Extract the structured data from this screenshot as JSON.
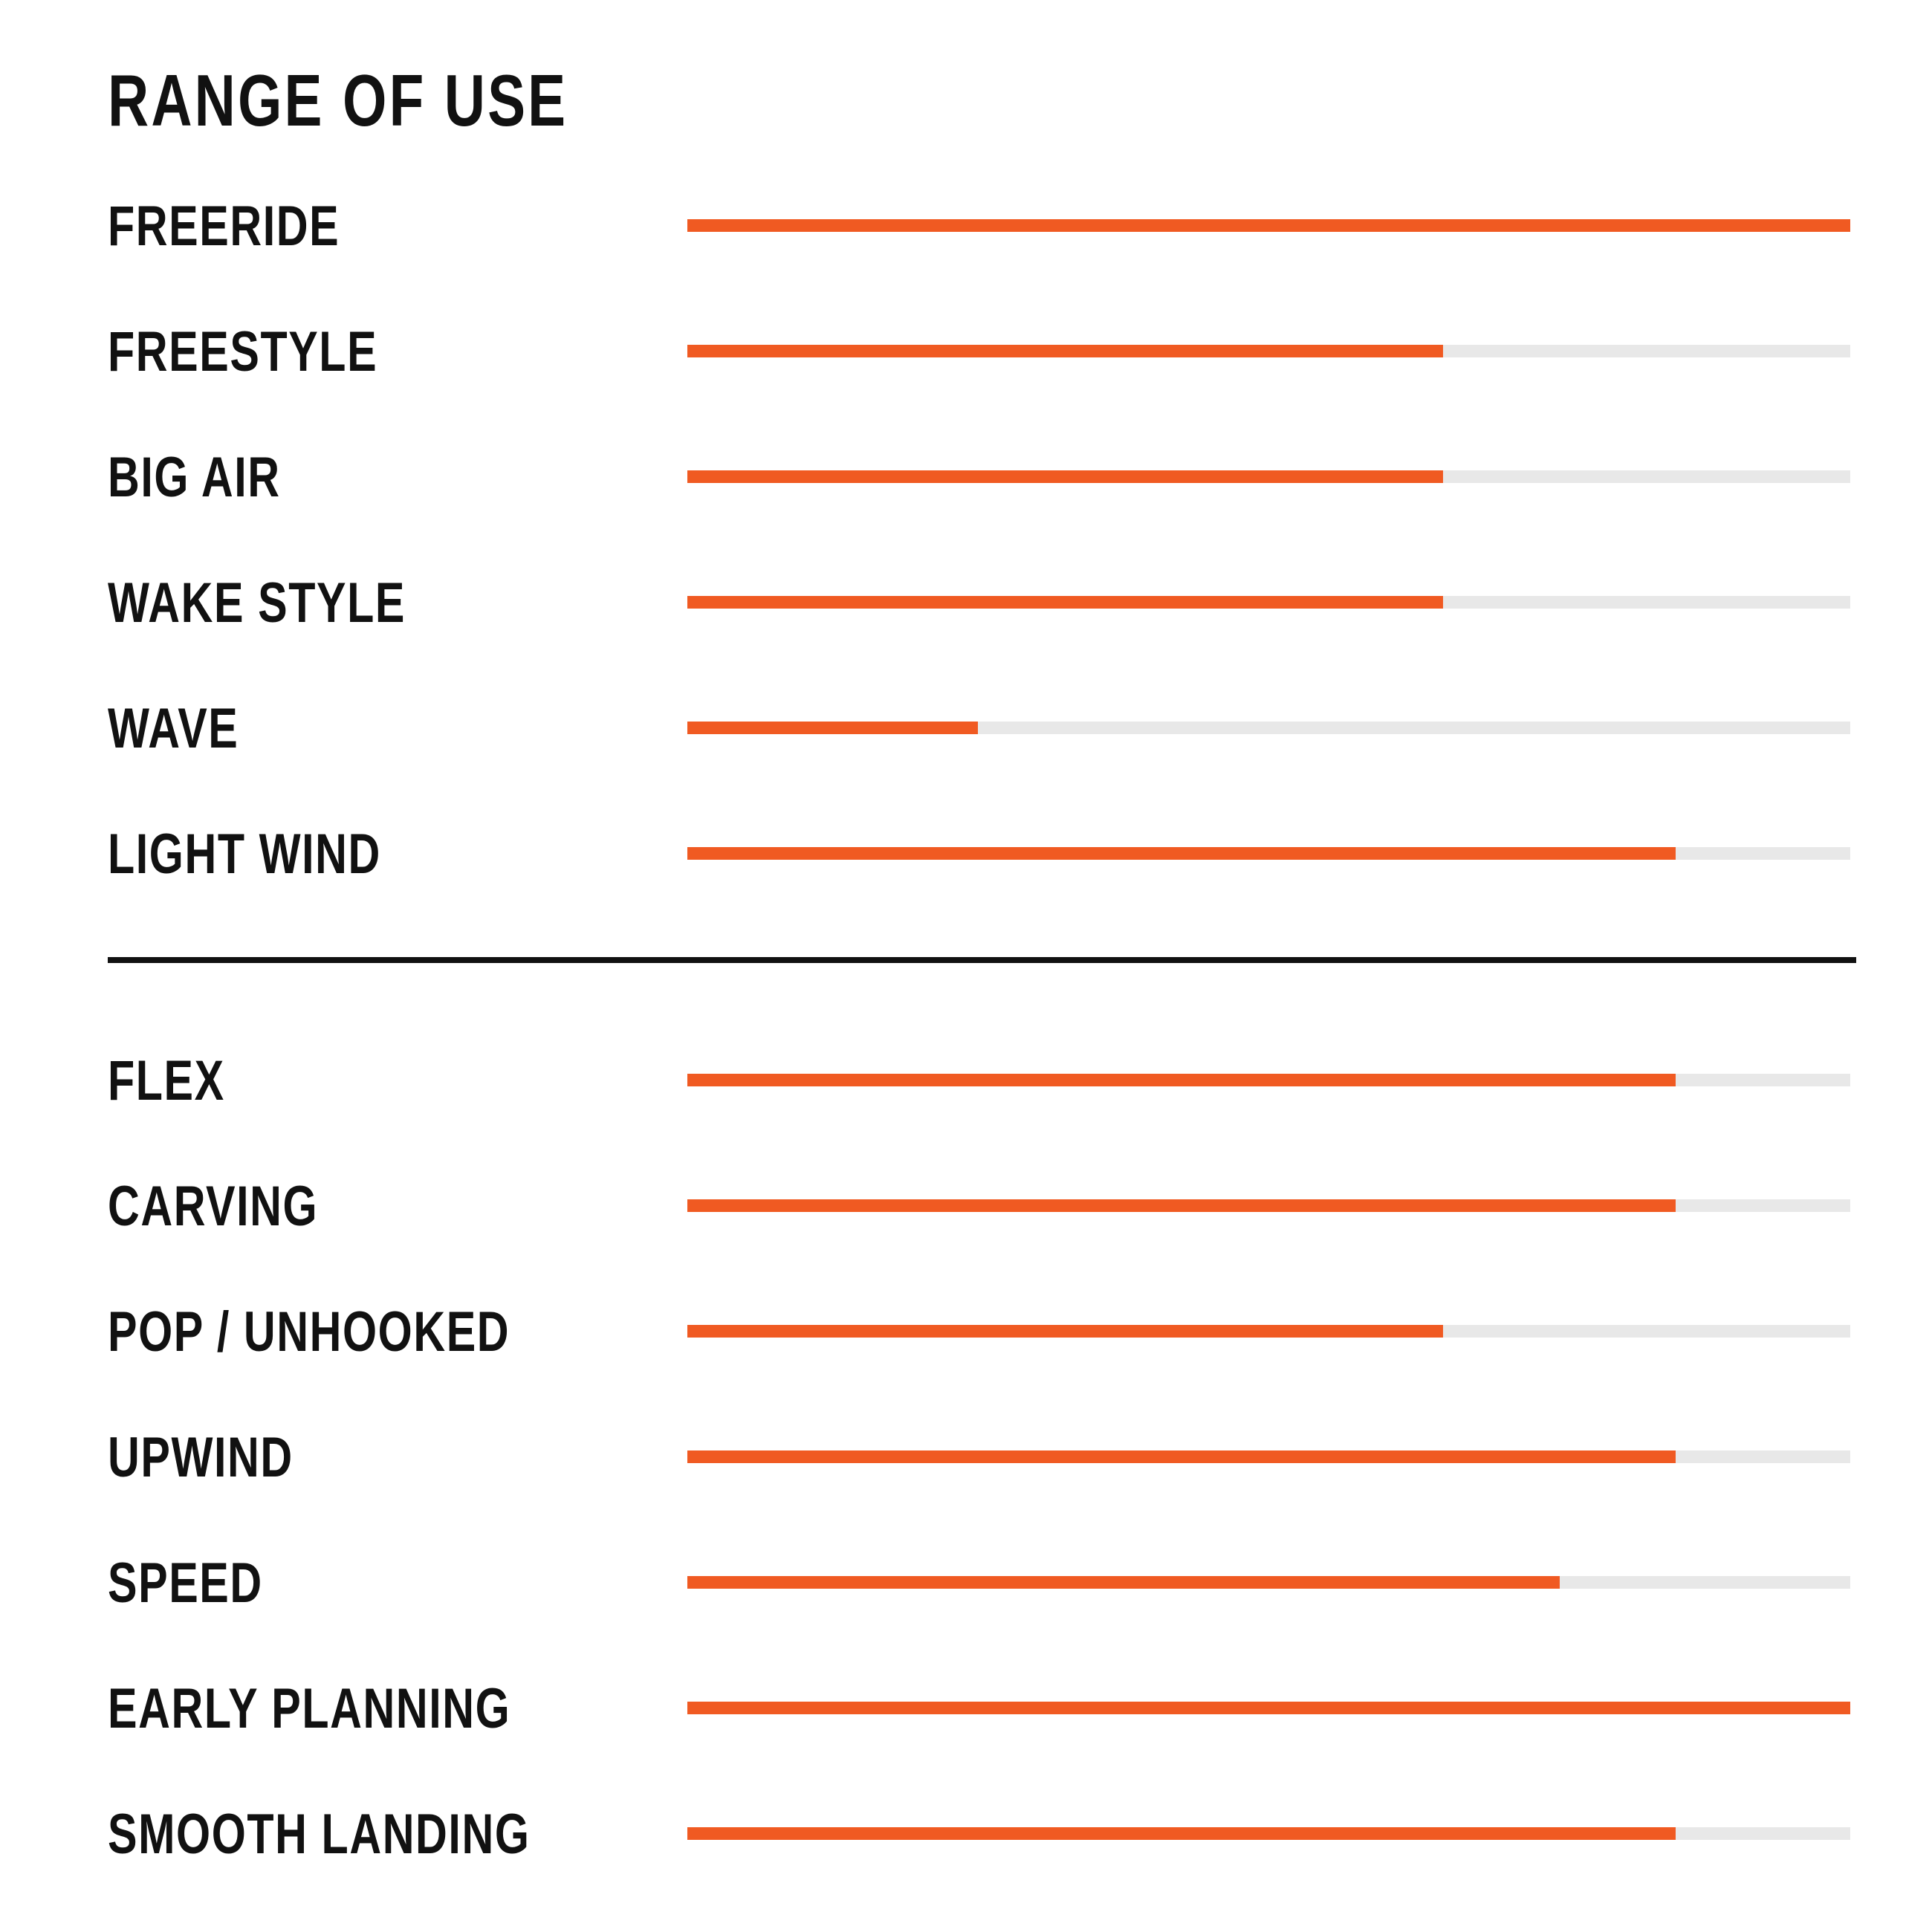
{
  "colors": {
    "fill": "#f05a22",
    "track": "#e8e8e8",
    "text": "#111111",
    "divider": "#111111"
  },
  "chart_data": {
    "type": "bar",
    "orientation": "horizontal",
    "title": "RANGE OF USE",
    "scale": [
      0,
      1
    ],
    "groups": [
      {
        "items": [
          {
            "label": "FREERIDE",
            "value": 1.0
          },
          {
            "label": "FREESTYLE",
            "value": 0.65
          },
          {
            "label": "BIG AIR",
            "value": 0.65
          },
          {
            "label": "WAKE STYLE",
            "value": 0.65
          },
          {
            "label": "WAVE",
            "value": 0.25
          },
          {
            "label": "LIGHT WIND",
            "value": 0.85
          }
        ]
      },
      {
        "items": [
          {
            "label": "FLEX",
            "value": 0.85
          },
          {
            "label": "CARVING",
            "value": 0.85
          },
          {
            "label": "POP / UNHOOKED",
            "value": 0.65
          },
          {
            "label": "UPWIND",
            "value": 0.85
          },
          {
            "label": "SPEED",
            "value": 0.75
          },
          {
            "label": "EARLY PLANNING",
            "value": 1.0
          },
          {
            "label": "SMOOTH LANDING",
            "value": 0.85
          }
        ]
      }
    ]
  }
}
